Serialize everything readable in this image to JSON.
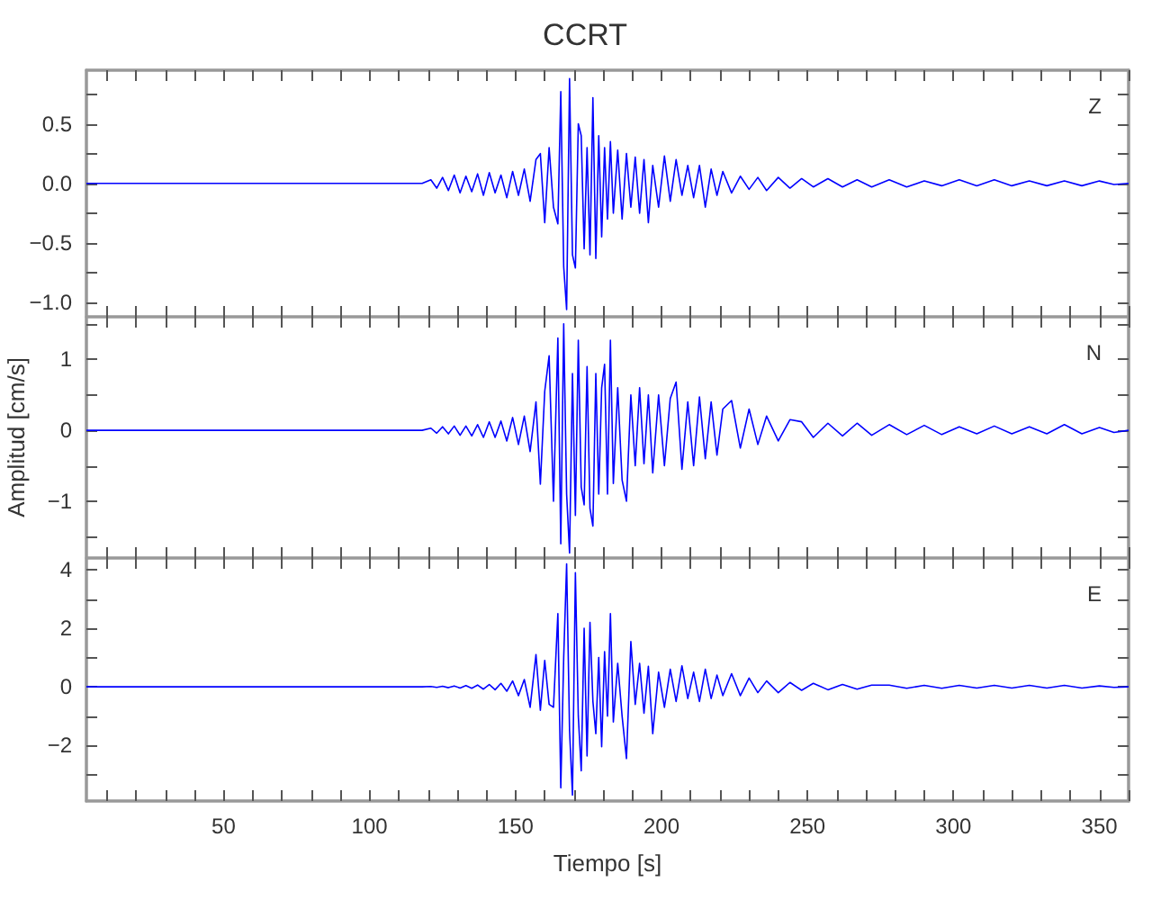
{
  "chart_data": [
    {
      "type": "line",
      "title": "CCRT",
      "annotations": [
        "Z"
      ],
      "tick_labels": "y",
      "xlim": [
        3,
        360
      ],
      "xticks": [
        {
          "value": 10,
          "label": null
        },
        {
          "value": 20,
          "label": null
        },
        {
          "value": 30,
          "label": null
        },
        {
          "value": 40,
          "label": null
        },
        {
          "value": 50,
          "label": null
        },
        {
          "value": 60,
          "label": null
        },
        {
          "value": 70,
          "label": null
        },
        {
          "value": 80,
          "label": null
        },
        {
          "value": 90,
          "label": null
        },
        {
          "value": 100,
          "label": null
        },
        {
          "value": 110,
          "label": null
        },
        {
          "value": 120,
          "label": null
        },
        {
          "value": 130,
          "label": null
        },
        {
          "value": 140,
          "label": null
        },
        {
          "value": 150,
          "label": null
        },
        {
          "value": 160,
          "label": null
        },
        {
          "value": 170,
          "label": null
        },
        {
          "value": 180,
          "label": null
        },
        {
          "value": 190,
          "label": null
        },
        {
          "value": 200,
          "label": null
        },
        {
          "value": 210,
          "label": null
        },
        {
          "value": 220,
          "label": null
        },
        {
          "value": 230,
          "label": null
        },
        {
          "value": 240,
          "label": null
        },
        {
          "value": 250,
          "label": null
        },
        {
          "value": 260,
          "label": null
        },
        {
          "value": 270,
          "label": null
        },
        {
          "value": 280,
          "label": null
        },
        {
          "value": 290,
          "label": null
        },
        {
          "value": 300,
          "label": null
        },
        {
          "value": 310,
          "label": null
        },
        {
          "value": 320,
          "label": null
        },
        {
          "value": 330,
          "label": null
        },
        {
          "value": 340,
          "label": null
        },
        {
          "value": 350,
          "label": null
        },
        {
          "value": 360,
          "label": null
        }
      ],
      "ylim": [
        -1.12,
        0.95
      ],
      "yticks": [
        {
          "value": -1,
          "label": "−1.0"
        },
        {
          "value": -0.75,
          "label": null
        },
        {
          "value": -0.5,
          "label": "−0.5"
        },
        {
          "value": -0.25,
          "label": null
        },
        {
          "value": 0,
          "label": "0.0"
        },
        {
          "value": 0.25,
          "label": null
        },
        {
          "value": 0.5,
          "label": "0.5"
        },
        {
          "value": 0.75,
          "label": null
        }
      ],
      "x": [
        3,
        60,
        118,
        121,
        123,
        125,
        127,
        129,
        131,
        133,
        135,
        137,
        139,
        141,
        143,
        145,
        147,
        149,
        151,
        153,
        155,
        157,
        158.5,
        160,
        161.5,
        163,
        164.5,
        165.5,
        166.5,
        167.5,
        168.5,
        169.5,
        170.5,
        171.5,
        172.5,
        173.5,
        174.5,
        175.5,
        176.5,
        177.5,
        178.5,
        179.5,
        180.5,
        181.5,
        182.5,
        183.5,
        185,
        186.5,
        188,
        189.5,
        191,
        192.5,
        194,
        195.5,
        197,
        199,
        201,
        203,
        205,
        207,
        209,
        211,
        213,
        215,
        217,
        219,
        221,
        224,
        227,
        230,
        233,
        236,
        240,
        244,
        248,
        252,
        257,
        262,
        267,
        272,
        278,
        284,
        290,
        296,
        302,
        308,
        314,
        320,
        326,
        332,
        338,
        344,
        350,
        355,
        360
      ],
      "series": [
        {
          "color": "#0000ff",
          "values": [
            0,
            0,
            0,
            0.03,
            -0.04,
            0.05,
            -0.06,
            0.07,
            -0.08,
            0.06,
            -0.07,
            0.08,
            -0.1,
            0.09,
            -0.08,
            0.07,
            -0.12,
            0.1,
            -0.1,
            0.12,
            -0.15,
            0.2,
            0.25,
            -0.33,
            0.3,
            -0.2,
            -0.34,
            0.77,
            -0.7,
            -1.06,
            0.88,
            -0.6,
            -0.71,
            0.5,
            0.4,
            -0.55,
            0.3,
            -0.6,
            0.72,
            -0.63,
            0.4,
            -0.45,
            0.3,
            -0.3,
            0.35,
            -0.25,
            0.28,
            -0.3,
            0.25,
            -0.2,
            0.22,
            -0.25,
            0.2,
            -0.33,
            0.15,
            -0.2,
            0.23,
            -0.15,
            0.2,
            -0.1,
            0.15,
            -0.12,
            0.15,
            -0.2,
            0.12,
            -0.1,
            0.1,
            -0.08,
            0.06,
            -0.05,
            0.05,
            -0.06,
            0.05,
            -0.04,
            0.04,
            -0.03,
            0.04,
            -0.03,
            0.03,
            -0.03,
            0.03,
            -0.03,
            0.02,
            -0.02,
            0.03,
            -0.02,
            0.03,
            -0.02,
            0.02,
            -0.02,
            0.02,
            -0.02,
            0.02,
            -0.01,
            0
          ]
        }
      ]
    },
    {
      "type": "line",
      "ylabel": "Amplitud [cm/s]",
      "annotations": [
        "N"
      ],
      "tick_labels": "y",
      "xlim": [
        3,
        360
      ],
      "xticks": [
        {
          "value": 10,
          "label": null
        },
        {
          "value": 20,
          "label": null
        },
        {
          "value": 30,
          "label": null
        },
        {
          "value": 40,
          "label": null
        },
        {
          "value": 50,
          "label": null
        },
        {
          "value": 60,
          "label": null
        },
        {
          "value": 70,
          "label": null
        },
        {
          "value": 80,
          "label": null
        },
        {
          "value": 90,
          "label": null
        },
        {
          "value": 100,
          "label": null
        },
        {
          "value": 110,
          "label": null
        },
        {
          "value": 120,
          "label": null
        },
        {
          "value": 130,
          "label": null
        },
        {
          "value": 140,
          "label": null
        },
        {
          "value": 150,
          "label": null
        },
        {
          "value": 160,
          "label": null
        },
        {
          "value": 170,
          "label": null
        },
        {
          "value": 180,
          "label": null
        },
        {
          "value": 190,
          "label": null
        },
        {
          "value": 200,
          "label": null
        },
        {
          "value": 210,
          "label": null
        },
        {
          "value": 220,
          "label": null
        },
        {
          "value": 230,
          "label": null
        },
        {
          "value": 240,
          "label": null
        },
        {
          "value": 250,
          "label": null
        },
        {
          "value": 260,
          "label": null
        },
        {
          "value": 270,
          "label": null
        },
        {
          "value": 280,
          "label": null
        },
        {
          "value": 290,
          "label": null
        },
        {
          "value": 300,
          "label": null
        },
        {
          "value": 310,
          "label": null
        },
        {
          "value": 320,
          "label": null
        },
        {
          "value": 330,
          "label": null
        },
        {
          "value": 340,
          "label": null
        },
        {
          "value": 350,
          "label": null
        },
        {
          "value": 360,
          "label": null
        }
      ],
      "ylim": [
        -1.8,
        1.6
      ],
      "yticks": [
        {
          "value": -1.5,
          "label": null
        },
        {
          "value": -1,
          "label": "−1"
        },
        {
          "value": -0.5,
          "label": null
        },
        {
          "value": 0,
          "label": "0"
        },
        {
          "value": 0.5,
          "label": null
        },
        {
          "value": 1,
          "label": "1"
        },
        {
          "value": 1.5,
          "label": null
        }
      ],
      "x": [
        3,
        60,
        118,
        121,
        123,
        125,
        127,
        129,
        131,
        133,
        135,
        137,
        139,
        141,
        143,
        145,
        147,
        149,
        151,
        153,
        155,
        157,
        158.5,
        160,
        161.5,
        163,
        164.5,
        165.5,
        166.5,
        167.5,
        168.5,
        169.5,
        170.5,
        171.5,
        172.5,
        173.5,
        174.5,
        175.5,
        176.5,
        177.5,
        178.5,
        179.5,
        180.5,
        181.5,
        182.5,
        183.5,
        185,
        186.5,
        188,
        189.5,
        191,
        192.5,
        194,
        195.5,
        197,
        199,
        201,
        203,
        205,
        207,
        209,
        211,
        213,
        215,
        217,
        219,
        221,
        224,
        227,
        230,
        233,
        236,
        240,
        244,
        248,
        252,
        257,
        262,
        267,
        272,
        278,
        284,
        290,
        296,
        302,
        308,
        314,
        320,
        326,
        332,
        338,
        344,
        350,
        355,
        360
      ],
      "series": [
        {
          "color": "#0000ff",
          "values": [
            0,
            0,
            0,
            0.03,
            -0.04,
            0.05,
            -0.05,
            0.06,
            -0.07,
            0.06,
            -0.08,
            0.08,
            -0.1,
            0.12,
            -0.1,
            0.13,
            -0.15,
            0.18,
            -0.2,
            0.2,
            -0.3,
            0.4,
            -0.76,
            0.55,
            1.05,
            -1,
            1.3,
            -1.6,
            1.5,
            -0.9,
            -1.73,
            0.8,
            -1.2,
            1.27,
            -0.8,
            -1.05,
            0.9,
            -1.1,
            -1.35,
            0.8,
            -0.9,
            0.6,
            0.93,
            -0.9,
            1.27,
            -0.75,
            0.6,
            -0.7,
            -1,
            0.5,
            -0.5,
            0.6,
            -0.47,
            0.5,
            -0.6,
            0.5,
            -0.5,
            0.45,
            0.68,
            -0.55,
            0.4,
            -0.5,
            0.47,
            -0.4,
            0.4,
            -0.35,
            0.3,
            0.42,
            -0.25,
            0.3,
            -0.2,
            0.2,
            -0.15,
            0.15,
            0.12,
            -0.1,
            0.1,
            -0.08,
            0.1,
            -0.07,
            0.08,
            -0.06,
            0.07,
            -0.06,
            0.05,
            -0.05,
            0.06,
            -0.05,
            0.05,
            -0.05,
            0.08,
            -0.05,
            0.04,
            -0.03,
            0
          ]
        }
      ]
    },
    {
      "type": "line",
      "xlabel": "Tiempo [s]",
      "annotations": [
        "E"
      ],
      "xlim": [
        3,
        360
      ],
      "xticks": [
        {
          "value": 10,
          "label": null
        },
        {
          "value": 20,
          "label": null
        },
        {
          "value": 30,
          "label": null
        },
        {
          "value": 40,
          "label": null
        },
        50,
        {
          "value": 60,
          "label": null
        },
        {
          "value": 70,
          "label": null
        },
        {
          "value": 80,
          "label": null
        },
        {
          "value": 90,
          "label": null
        },
        100,
        {
          "value": 110,
          "label": null
        },
        {
          "value": 120,
          "label": null
        },
        {
          "value": 130,
          "label": null
        },
        {
          "value": 140,
          "label": null
        },
        150,
        {
          "value": 160,
          "label": null
        },
        {
          "value": 170,
          "label": null
        },
        {
          "value": 180,
          "label": null
        },
        {
          "value": 190,
          "label": null
        },
        200,
        {
          "value": 210,
          "label": null
        },
        {
          "value": 220,
          "label": null
        },
        {
          "value": 230,
          "label": null
        },
        {
          "value": 240,
          "label": null
        },
        250,
        {
          "value": 260,
          "label": null
        },
        {
          "value": 270,
          "label": null
        },
        {
          "value": 280,
          "label": null
        },
        {
          "value": 290,
          "label": null
        },
        300,
        {
          "value": 310,
          "label": null
        },
        {
          "value": 320,
          "label": null
        },
        {
          "value": 330,
          "label": null
        },
        {
          "value": 340,
          "label": null
        },
        350,
        {
          "value": 360,
          "label": null
        }
      ],
      "ylim": [
        -3.9,
        4.4
      ],
      "yticks": [
        {
          "value": -3,
          "label": null
        },
        {
          "value": -2,
          "label": "−2"
        },
        {
          "value": -1,
          "label": null
        },
        {
          "value": 0,
          "label": "0"
        },
        {
          "value": 1,
          "label": null
        },
        {
          "value": 2,
          "label": "2"
        },
        {
          "value": 3,
          "label": null
        },
        {
          "value": 4,
          "label": "4"
        }
      ],
      "x": [
        3,
        60,
        118,
        121,
        123,
        125,
        127,
        129,
        131,
        133,
        135,
        137,
        139,
        141,
        143,
        145,
        147,
        149,
        151,
        153,
        155,
        157,
        158.5,
        160,
        161.5,
        163,
        164.5,
        165.5,
        166.5,
        167.5,
        168.5,
        169.5,
        170.5,
        171.5,
        172.5,
        173.5,
        174.5,
        175.5,
        176.5,
        177.5,
        178.5,
        179.5,
        180.5,
        181.5,
        182.5,
        183.5,
        185,
        186.5,
        188,
        189.5,
        191,
        192.5,
        194,
        195.5,
        197,
        199,
        201,
        203,
        205,
        207,
        209,
        211,
        213,
        215,
        217,
        219,
        221,
        224,
        227,
        230,
        233,
        236,
        240,
        244,
        248,
        252,
        257,
        262,
        267,
        272,
        278,
        284,
        290,
        296,
        302,
        308,
        314,
        320,
        326,
        332,
        338,
        344,
        350,
        355,
        360
      ],
      "series": [
        {
          "color": "#0000ff",
          "values": [
            0,
            0,
            0,
            0.01,
            -0.02,
            0.02,
            -0.03,
            0.03,
            -0.04,
            0.04,
            -0.05,
            0.06,
            -0.08,
            0.08,
            -0.1,
            0.12,
            -0.15,
            0.2,
            -0.3,
            0.25,
            -0.7,
            1.1,
            -0.8,
            0.9,
            -0.6,
            -0.7,
            2.5,
            -3.45,
            1,
            4.2,
            -1.5,
            -3.7,
            3.9,
            -1,
            -2.87,
            2,
            -2.36,
            2.2,
            -0.5,
            -1.6,
            1,
            -2.05,
            1.2,
            -1,
            2.5,
            -1.2,
            0.8,
            -1,
            -2.45,
            1.55,
            -0.6,
            0.8,
            -0.9,
            0.7,
            -1.6,
            0.5,
            -0.7,
            0.6,
            -0.5,
            0.72,
            -0.4,
            0.5,
            -0.5,
            0.6,
            -0.4,
            0.4,
            -0.3,
            0.45,
            -0.3,
            0.3,
            -0.2,
            0.2,
            -0.2,
            0.15,
            -0.12,
            0.12,
            -0.1,
            0.08,
            -0.08,
            0.06,
            0.06,
            -0.05,
            0.05,
            -0.05,
            0.05,
            -0.04,
            0.05,
            -0.04,
            0.05,
            -0.04,
            0.05,
            -0.04,
            0.03,
            -0.02,
            0
          ]
        }
      ]
    }
  ]
}
